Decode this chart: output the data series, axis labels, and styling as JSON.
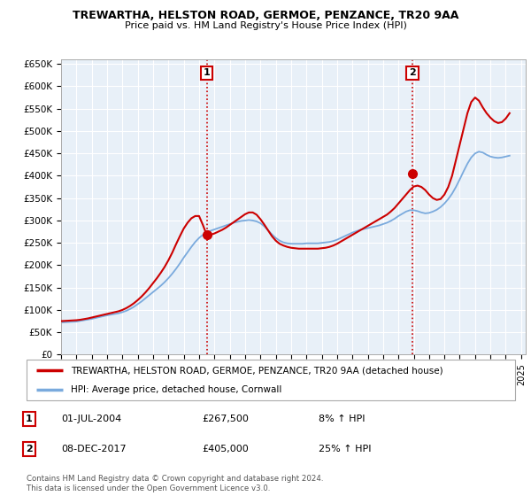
{
  "title": "TREWARTHA, HELSTON ROAD, GERMOE, PENZANCE, TR20 9AA",
  "subtitle": "Price paid vs. HM Land Registry's House Price Index (HPI)",
  "legend_line1": "TREWARTHA, HELSTON ROAD, GERMOE, PENZANCE, TR20 9AA (detached house)",
  "legend_line2": "HPI: Average price, detached house, Cornwall",
  "footer": "Contains HM Land Registry data © Crown copyright and database right 2024.\nThis data is licensed under the Open Government Licence v3.0.",
  "sale1_date": "01-JUL-2004",
  "sale1_price": "£267,500",
  "sale1_hpi": "8% ↑ HPI",
  "sale2_date": "08-DEC-2017",
  "sale2_price": "£405,000",
  "sale2_hpi": "25% ↑ HPI",
  "red_color": "#cc0000",
  "blue_color": "#7aaadd",
  "plot_bg": "#e8f0f8",
  "marker_fill": "#cc0000",
  "ylim": [
    0,
    660000
  ],
  "yticks": [
    0,
    50000,
    100000,
    150000,
    200000,
    250000,
    300000,
    350000,
    400000,
    450000,
    500000,
    550000,
    600000,
    650000
  ],
  "ytick_labels": [
    "£0",
    "£50K",
    "£100K",
    "£150K",
    "£200K",
    "£250K",
    "£300K",
    "£350K",
    "£400K",
    "£450K",
    "£500K",
    "£550K",
    "£600K",
    "£650K"
  ],
  "xlim_start": 1995.0,
  "xlim_end": 2025.3,
  "sale1_x": 2004.5,
  "sale1_y": 267500,
  "sale2_x": 2017.92,
  "sale2_y": 405000,
  "hpi_years": [
    1995.0,
    1995.25,
    1995.5,
    1995.75,
    1996.0,
    1996.25,
    1996.5,
    1996.75,
    1997.0,
    1997.25,
    1997.5,
    1997.75,
    1998.0,
    1998.25,
    1998.5,
    1998.75,
    1999.0,
    1999.25,
    1999.5,
    1999.75,
    2000.0,
    2000.25,
    2000.5,
    2000.75,
    2001.0,
    2001.25,
    2001.5,
    2001.75,
    2002.0,
    2002.25,
    2002.5,
    2002.75,
    2003.0,
    2003.25,
    2003.5,
    2003.75,
    2004.0,
    2004.25,
    2004.5,
    2004.75,
    2005.0,
    2005.25,
    2005.5,
    2005.75,
    2006.0,
    2006.25,
    2006.5,
    2006.75,
    2007.0,
    2007.25,
    2007.5,
    2007.75,
    2008.0,
    2008.25,
    2008.5,
    2008.75,
    2009.0,
    2009.25,
    2009.5,
    2009.75,
    2010.0,
    2010.25,
    2010.5,
    2010.75,
    2011.0,
    2011.25,
    2011.5,
    2011.75,
    2012.0,
    2012.25,
    2012.5,
    2012.75,
    2013.0,
    2013.25,
    2013.5,
    2013.75,
    2014.0,
    2014.25,
    2014.5,
    2014.75,
    2015.0,
    2015.25,
    2015.5,
    2015.75,
    2016.0,
    2016.25,
    2016.5,
    2016.75,
    2017.0,
    2017.25,
    2017.5,
    2017.75,
    2018.0,
    2018.25,
    2018.5,
    2018.75,
    2019.0,
    2019.25,
    2019.5,
    2019.75,
    2020.0,
    2020.25,
    2020.5,
    2020.75,
    2021.0,
    2021.25,
    2021.5,
    2021.75,
    2022.0,
    2022.25,
    2022.5,
    2022.75,
    2023.0,
    2023.25,
    2023.5,
    2023.75,
    2024.0,
    2024.25
  ],
  "hpi_values": [
    72000,
    72500,
    73000,
    73500,
    74000,
    75500,
    77000,
    78500,
    80000,
    82000,
    84000,
    86000,
    88000,
    89500,
    91000,
    92500,
    95000,
    98000,
    102000,
    107000,
    113000,
    119000,
    126000,
    133000,
    140000,
    147000,
    154000,
    162000,
    171000,
    181000,
    192000,
    204000,
    217000,
    229000,
    241000,
    252000,
    261000,
    268000,
    273000,
    277000,
    280000,
    283000,
    286000,
    289000,
    292000,
    295000,
    297000,
    299000,
    300000,
    301000,
    300000,
    298000,
    294000,
    287000,
    278000,
    269000,
    261000,
    255000,
    251000,
    249000,
    248000,
    248000,
    248000,
    248000,
    249000,
    249000,
    249000,
    249000,
    250000,
    251000,
    252000,
    254000,
    257000,
    261000,
    265000,
    269000,
    273000,
    276000,
    279000,
    281000,
    283000,
    285000,
    287000,
    289000,
    292000,
    295000,
    299000,
    304000,
    310000,
    315000,
    320000,
    323000,
    323000,
    321000,
    318000,
    316000,
    317000,
    320000,
    324000,
    330000,
    338000,
    348000,
    360000,
    375000,
    392000,
    410000,
    427000,
    441000,
    450000,
    454000,
    452000,
    447000,
    443000,
    441000,
    440000,
    441000,
    443000,
    445000
  ],
  "red_years": [
    1995.0,
    1995.25,
    1995.5,
    1995.75,
    1996.0,
    1996.25,
    1996.5,
    1996.75,
    1997.0,
    1997.25,
    1997.5,
    1997.75,
    1998.0,
    1998.25,
    1998.5,
    1998.75,
    1999.0,
    1999.25,
    1999.5,
    1999.75,
    2000.0,
    2000.25,
    2000.5,
    2000.75,
    2001.0,
    2001.25,
    2001.5,
    2001.75,
    2002.0,
    2002.25,
    2002.5,
    2002.75,
    2003.0,
    2003.25,
    2003.5,
    2003.75,
    2004.0,
    2004.25,
    2004.5,
    2004.75,
    2005.0,
    2005.25,
    2005.5,
    2005.75,
    2006.0,
    2006.25,
    2006.5,
    2006.75,
    2007.0,
    2007.25,
    2007.5,
    2007.75,
    2008.0,
    2008.25,
    2008.5,
    2008.75,
    2009.0,
    2009.25,
    2009.5,
    2009.75,
    2010.0,
    2010.25,
    2010.5,
    2010.75,
    2011.0,
    2011.25,
    2011.5,
    2011.75,
    2012.0,
    2012.25,
    2012.5,
    2012.75,
    2013.0,
    2013.25,
    2013.5,
    2013.75,
    2014.0,
    2014.25,
    2014.5,
    2014.75,
    2015.0,
    2015.25,
    2015.5,
    2015.75,
    2016.0,
    2016.25,
    2016.5,
    2016.75,
    2017.0,
    2017.25,
    2017.5,
    2017.75,
    2018.0,
    2018.25,
    2018.5,
    2018.75,
    2019.0,
    2019.25,
    2019.5,
    2019.75,
    2020.0,
    2020.25,
    2020.5,
    2020.75,
    2021.0,
    2021.25,
    2021.5,
    2021.75,
    2022.0,
    2022.25,
    2022.5,
    2022.75,
    2023.0,
    2023.25,
    2023.5,
    2023.75,
    2024.0,
    2024.25
  ],
  "red_values": [
    75000,
    75500,
    76000,
    76500,
    77000,
    78000,
    79500,
    81000,
    83000,
    85000,
    87000,
    89000,
    91000,
    93000,
    95000,
    97000,
    100000,
    104000,
    109000,
    115000,
    122000,
    130000,
    139000,
    149000,
    160000,
    171000,
    183000,
    196000,
    211000,
    228000,
    247000,
    265000,
    282000,
    295000,
    305000,
    310000,
    310000,
    290000,
    267500,
    268000,
    271000,
    275000,
    279000,
    284000,
    290000,
    296000,
    302000,
    308000,
    314000,
    318000,
    318000,
    313000,
    303000,
    291000,
    278000,
    265000,
    255000,
    248000,
    244000,
    241000,
    239000,
    238000,
    237000,
    237000,
    237000,
    237000,
    237000,
    237000,
    238000,
    239000,
    241000,
    244000,
    248000,
    253000,
    258000,
    263000,
    268000,
    273000,
    278000,
    283000,
    288000,
    293000,
    298000,
    303000,
    308000,
    313000,
    320000,
    328000,
    338000,
    348000,
    358000,
    368000,
    376000,
    378000,
    375000,
    368000,
    358000,
    350000,
    346000,
    348000,
    358000,
    375000,
    400000,
    435000,
    470000,
    505000,
    540000,
    565000,
    575000,
    568000,
    553000,
    540000,
    530000,
    522000,
    518000,
    520000,
    528000,
    540000
  ]
}
